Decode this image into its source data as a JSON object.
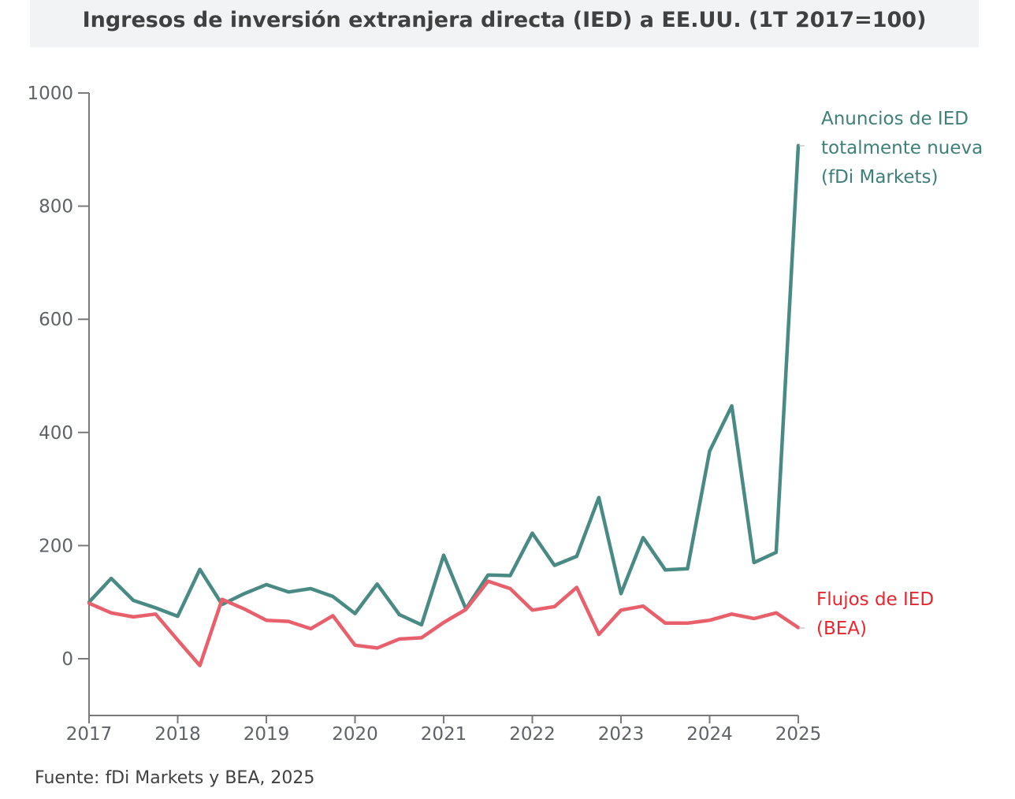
{
  "chart_data": {
    "type": "line",
    "title": "Ingresos de inversión extranjera directa (IED) a EE.UU. (1T 2017=100)",
    "xlabel": "",
    "ylabel": "",
    "ylim": [
      -90,
      1000
    ],
    "xlim": [
      2017,
      2025
    ],
    "y_ticks": [
      "1000",
      "800",
      "600",
      "400",
      "200",
      "0"
    ],
    "y_tick_values": [
      1000,
      800,
      600,
      400,
      200,
      0
    ],
    "x_ticks": [
      "2017",
      "2018",
      "2019",
      "2020",
      "2021",
      "2022",
      "2023",
      "2024",
      "2025"
    ],
    "x_tick_values": [
      2017,
      2018,
      2019,
      2020,
      2021,
      2022,
      2023,
      2024,
      2025
    ],
    "series": [
      {
        "name": "Anuncios de IED totalmente nueva (fDi Markets)",
        "label_lines": [
          "Anuncios de IED",
          "totalmente nueva",
          "(fDi Markets)"
        ],
        "color": "#4a8a84",
        "x": [
          2017,
          2017.25,
          2017.5,
          2017.75,
          2018,
          2018.25,
          2018.5,
          2018.75,
          2019,
          2019.25,
          2019.5,
          2019.75,
          2020,
          2020.25,
          2020.5,
          2020.75,
          2021,
          2021.25,
          2021.5,
          2021.75,
          2022,
          2022.25,
          2022.5,
          2022.75,
          2023,
          2023.25,
          2023.5,
          2023.75,
          2024,
          2024.25,
          2024.5,
          2024.75,
          2025
        ],
        "values": [
          100,
          142,
          103,
          90,
          75,
          158,
          96,
          115,
          131,
          118,
          124,
          110,
          80,
          132,
          78,
          60,
          183,
          88,
          148,
          147,
          222,
          165,
          181,
          285,
          115,
          214,
          157,
          159,
          367,
          447,
          170,
          188,
          907
        ]
      },
      {
        "name": "Flujos de IED (BEA)",
        "label_lines": [
          "Flujos de IED",
          "(BEA)"
        ],
        "color": "#e8606b",
        "x": [
          2017,
          2017.25,
          2017.5,
          2017.75,
          2018,
          2018.25,
          2018.5,
          2018.75,
          2019,
          2019.25,
          2019.5,
          2019.75,
          2020,
          2020.25,
          2020.5,
          2020.75,
          2021,
          2021.25,
          2021.5,
          2021.75,
          2022,
          2022.25,
          2022.5,
          2022.75,
          2023,
          2023.25,
          2023.5,
          2023.75,
          2024,
          2024.25,
          2024.5,
          2024.75,
          2025
        ],
        "values": [
          98,
          81,
          74,
          79,
          33,
          -12,
          105,
          88,
          68,
          66,
          53,
          76,
          24,
          19,
          35,
          37,
          64,
          87,
          137,
          124,
          86,
          92,
          126,
          43,
          86,
          93,
          63,
          63,
          68,
          79,
          71,
          81,
          55
        ]
      }
    ]
  },
  "source": "Fuente: fDi Markets y BEA, 2025"
}
